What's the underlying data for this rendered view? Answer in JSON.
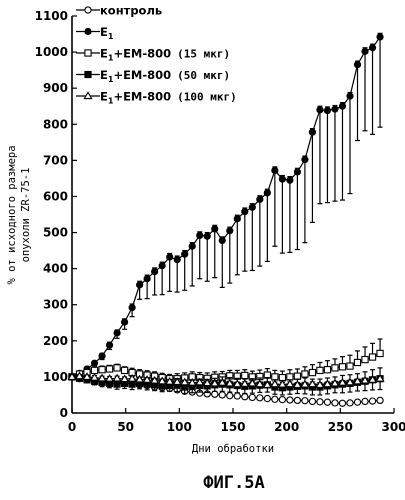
{
  "figure": {
    "caption": "ФИГ.5А"
  },
  "chart_data": {
    "type": "line",
    "xlabel": "Дни обработки",
    "ylabel_line1": "% от исходного размера",
    "ylabel_line2": "опухоли ZR-75-1",
    "xlim": [
      0,
      300
    ],
    "ylim": [
      0,
      1100
    ],
    "xticks": [
      0,
      50,
      100,
      150,
      200,
      250,
      300
    ],
    "yticks": [
      0,
      100,
      200,
      300,
      400,
      500,
      600,
      700,
      800,
      900,
      1000,
      1100
    ],
    "x": [
      0,
      7,
      14,
      21,
      28,
      35,
      42,
      49,
      56,
      63,
      70,
      77,
      84,
      91,
      98,
      105,
      112,
      119,
      126,
      133,
      140,
      147,
      154,
      161,
      168,
      175,
      182,
      189,
      196,
      203,
      210,
      217,
      224,
      231,
      238,
      245,
      252,
      259,
      266,
      273,
      280,
      287
    ],
    "legend": [
      {
        "key": "control",
        "marker": "open-circle",
        "label": "контроль",
        "dose": ""
      },
      {
        "key": "e1",
        "marker": "filled-circle",
        "label": "E",
        "sub": "1",
        "dose": ""
      },
      {
        "key": "em15",
        "marker": "open-square",
        "label": "E",
        "sub": "1",
        "suffix": "+EM-800",
        "dose": "(15 мкг)"
      },
      {
        "key": "em50",
        "marker": "filled-square",
        "label": "E",
        "sub": "1",
        "suffix": "+EM-800",
        "dose": "(50 мкг)"
      },
      {
        "key": "em100",
        "marker": "open-triangle",
        "label": "E",
        "sub": "1",
        "suffix": "+EM-800",
        "dose": "(100 мкг)"
      }
    ],
    "series": [
      {
        "key": "e1",
        "marker": "filled-circle",
        "values": [
          100,
          110,
          122,
          138,
          158,
          188,
          222,
          252,
          292,
          355,
          372,
          392,
          408,
          432,
          425,
          440,
          462,
          492,
          490,
          510,
          478,
          505,
          538,
          558,
          570,
          592,
          610,
          672,
          648,
          645,
          668,
          702,
          778,
          840,
          838,
          842,
          850,
          878,
          965,
          1002,
          1012,
          1042
        ],
        "err_up": [
          0,
          4,
          5,
          6,
          7,
          8,
          8,
          9,
          10,
          10,
          10,
          10,
          10,
          10,
          10,
          10,
          10,
          10,
          10,
          10,
          10,
          10,
          10,
          10,
          10,
          10,
          10,
          10,
          10,
          10,
          10,
          10,
          10,
          10,
          10,
          10,
          10,
          10,
          10,
          10,
          10,
          10
        ],
        "err_down": [
          0,
          4,
          5,
          8,
          10,
          12,
          15,
          20,
          25,
          40,
          55,
          65,
          80,
          95,
          90,
          100,
          110,
          120,
          125,
          135,
          130,
          145,
          155,
          165,
          175,
          185,
          190,
          210,
          205,
          200,
          215,
          230,
          250,
          260,
          255,
          255,
          260,
          270,
          210,
          220,
          240,
          250
        ]
      },
      {
        "key": "em15",
        "marker": "open-square",
        "values": [
          100,
          108,
          112,
          118,
          120,
          122,
          125,
          118,
          112,
          108,
          105,
          102,
          98,
          95,
          95,
          97,
          100,
          98,
          96,
          99,
          100,
          103,
          102,
          104,
          100,
          101,
          105,
          100,
          98,
          100,
          102,
          108,
          112,
          118,
          120,
          125,
          128,
          130,
          140,
          148,
          155,
          165
        ],
        "err_up": [
          0,
          6,
          8,
          8,
          10,
          10,
          10,
          10,
          12,
          12,
          12,
          12,
          12,
          12,
          14,
          14,
          14,
          14,
          15,
          15,
          15,
          15,
          16,
          16,
          16,
          18,
          18,
          18,
          18,
          20,
          20,
          20,
          22,
          22,
          25,
          25,
          28,
          30,
          32,
          35,
          38,
          40
        ],
        "err_down": [
          0,
          4,
          5,
          5,
          6,
          6,
          6,
          6,
          6,
          6,
          6,
          6,
          6,
          6,
          6,
          6,
          6,
          6,
          6,
          6,
          6,
          6,
          6,
          6,
          6,
          6,
          6,
          6,
          6,
          6,
          6,
          6,
          6,
          6,
          6,
          6,
          6,
          6,
          6,
          6,
          6,
          6
        ]
      },
      {
        "key": "control",
        "marker": "open-circle",
        "values": [
          100,
          95,
          92,
          90,
          88,
          88,
          85,
          83,
          80,
          78,
          76,
          72,
          70,
          68,
          64,
          60,
          58,
          55,
          53,
          52,
          50,
          48,
          47,
          45,
          43,
          42,
          40,
          38,
          37,
          36,
          35,
          34,
          32,
          31,
          30,
          28,
          27,
          28,
          30,
          32,
          33,
          35
        ],
        "err_up": [
          0,
          4,
          4,
          5,
          5,
          5,
          6,
          6,
          6,
          6,
          6,
          6,
          6,
          6,
          6,
          6,
          6,
          6,
          6,
          6,
          6,
          6,
          6,
          6,
          6,
          6,
          6,
          6,
          6,
          6,
          6,
          6,
          6,
          6,
          6,
          6,
          6,
          6,
          6,
          6,
          6,
          6
        ],
        "err_down": [
          0,
          4,
          4,
          5,
          5,
          5,
          6,
          6,
          6,
          6,
          6,
          6,
          6,
          6,
          6,
          6,
          6,
          6,
          6,
          6,
          6,
          6,
          6,
          6,
          6,
          6,
          6,
          6,
          6,
          6,
          6,
          6,
          6,
          6,
          6,
          6,
          6,
          6,
          6,
          6,
          6,
          6
        ]
      },
      {
        "key": "em50",
        "marker": "filled-square",
        "values": [
          100,
          96,
          92,
          88,
          85,
          82,
          80,
          82,
          80,
          82,
          80,
          78,
          75,
          76,
          77,
          72,
          74,
          76,
          75,
          78,
          80,
          78,
          76,
          74,
          75,
          77,
          78,
          72,
          70,
          72,
          74,
          75,
          72,
          72,
          75,
          78,
          80,
          82,
          85,
          88,
          92,
          95
        ],
        "err_up": [
          0,
          6,
          8,
          10,
          12,
          12,
          14,
          14,
          15,
          15,
          16,
          16,
          16,
          16,
          18,
          18,
          18,
          18,
          18,
          18,
          20,
          20,
          20,
          20,
          20,
          20,
          20,
          20,
          20,
          20,
          20,
          22,
          22,
          22,
          22,
          22,
          24,
          24,
          24,
          26,
          28,
          30
        ],
        "err_down": [
          0,
          6,
          8,
          10,
          12,
          12,
          14,
          14,
          15,
          15,
          16,
          16,
          16,
          16,
          18,
          18,
          18,
          18,
          18,
          18,
          20,
          20,
          20,
          20,
          20,
          20,
          20,
          20,
          20,
          20,
          20,
          22,
          22,
          22,
          22,
          22,
          24,
          24,
          24,
          26,
          28,
          30
        ]
      },
      {
        "key": "em100",
        "marker": "open-triangle",
        "values": [
          100,
          102,
          100,
          98,
          96,
          95,
          96,
          94,
          95,
          93,
          92,
          90,
          88,
          87,
          86,
          85,
          84,
          85,
          83,
          82,
          84,
          82,
          80,
          81,
          82,
          80,
          78,
          80,
          79,
          80,
          78,
          79,
          80,
          78,
          80,
          82,
          84,
          85,
          88,
          90,
          92,
          95
        ],
        "err_up": [
          0,
          4,
          5,
          6,
          6,
          6,
          6,
          6,
          6,
          6,
          6,
          6,
          6,
          6,
          6,
          6,
          6,
          6,
          6,
          6,
          6,
          6,
          6,
          6,
          6,
          6,
          6,
          6,
          6,
          6,
          6,
          6,
          6,
          6,
          6,
          6,
          6,
          6,
          6,
          6,
          6,
          6
        ],
        "err_down": [
          0,
          4,
          5,
          6,
          6,
          6,
          6,
          6,
          6,
          6,
          6,
          6,
          6,
          6,
          6,
          6,
          6,
          6,
          6,
          6,
          6,
          6,
          6,
          6,
          6,
          6,
          6,
          6,
          6,
          6,
          6,
          6,
          6,
          6,
          6,
          6,
          6,
          6,
          6,
          6,
          6,
          6
        ]
      }
    ]
  }
}
